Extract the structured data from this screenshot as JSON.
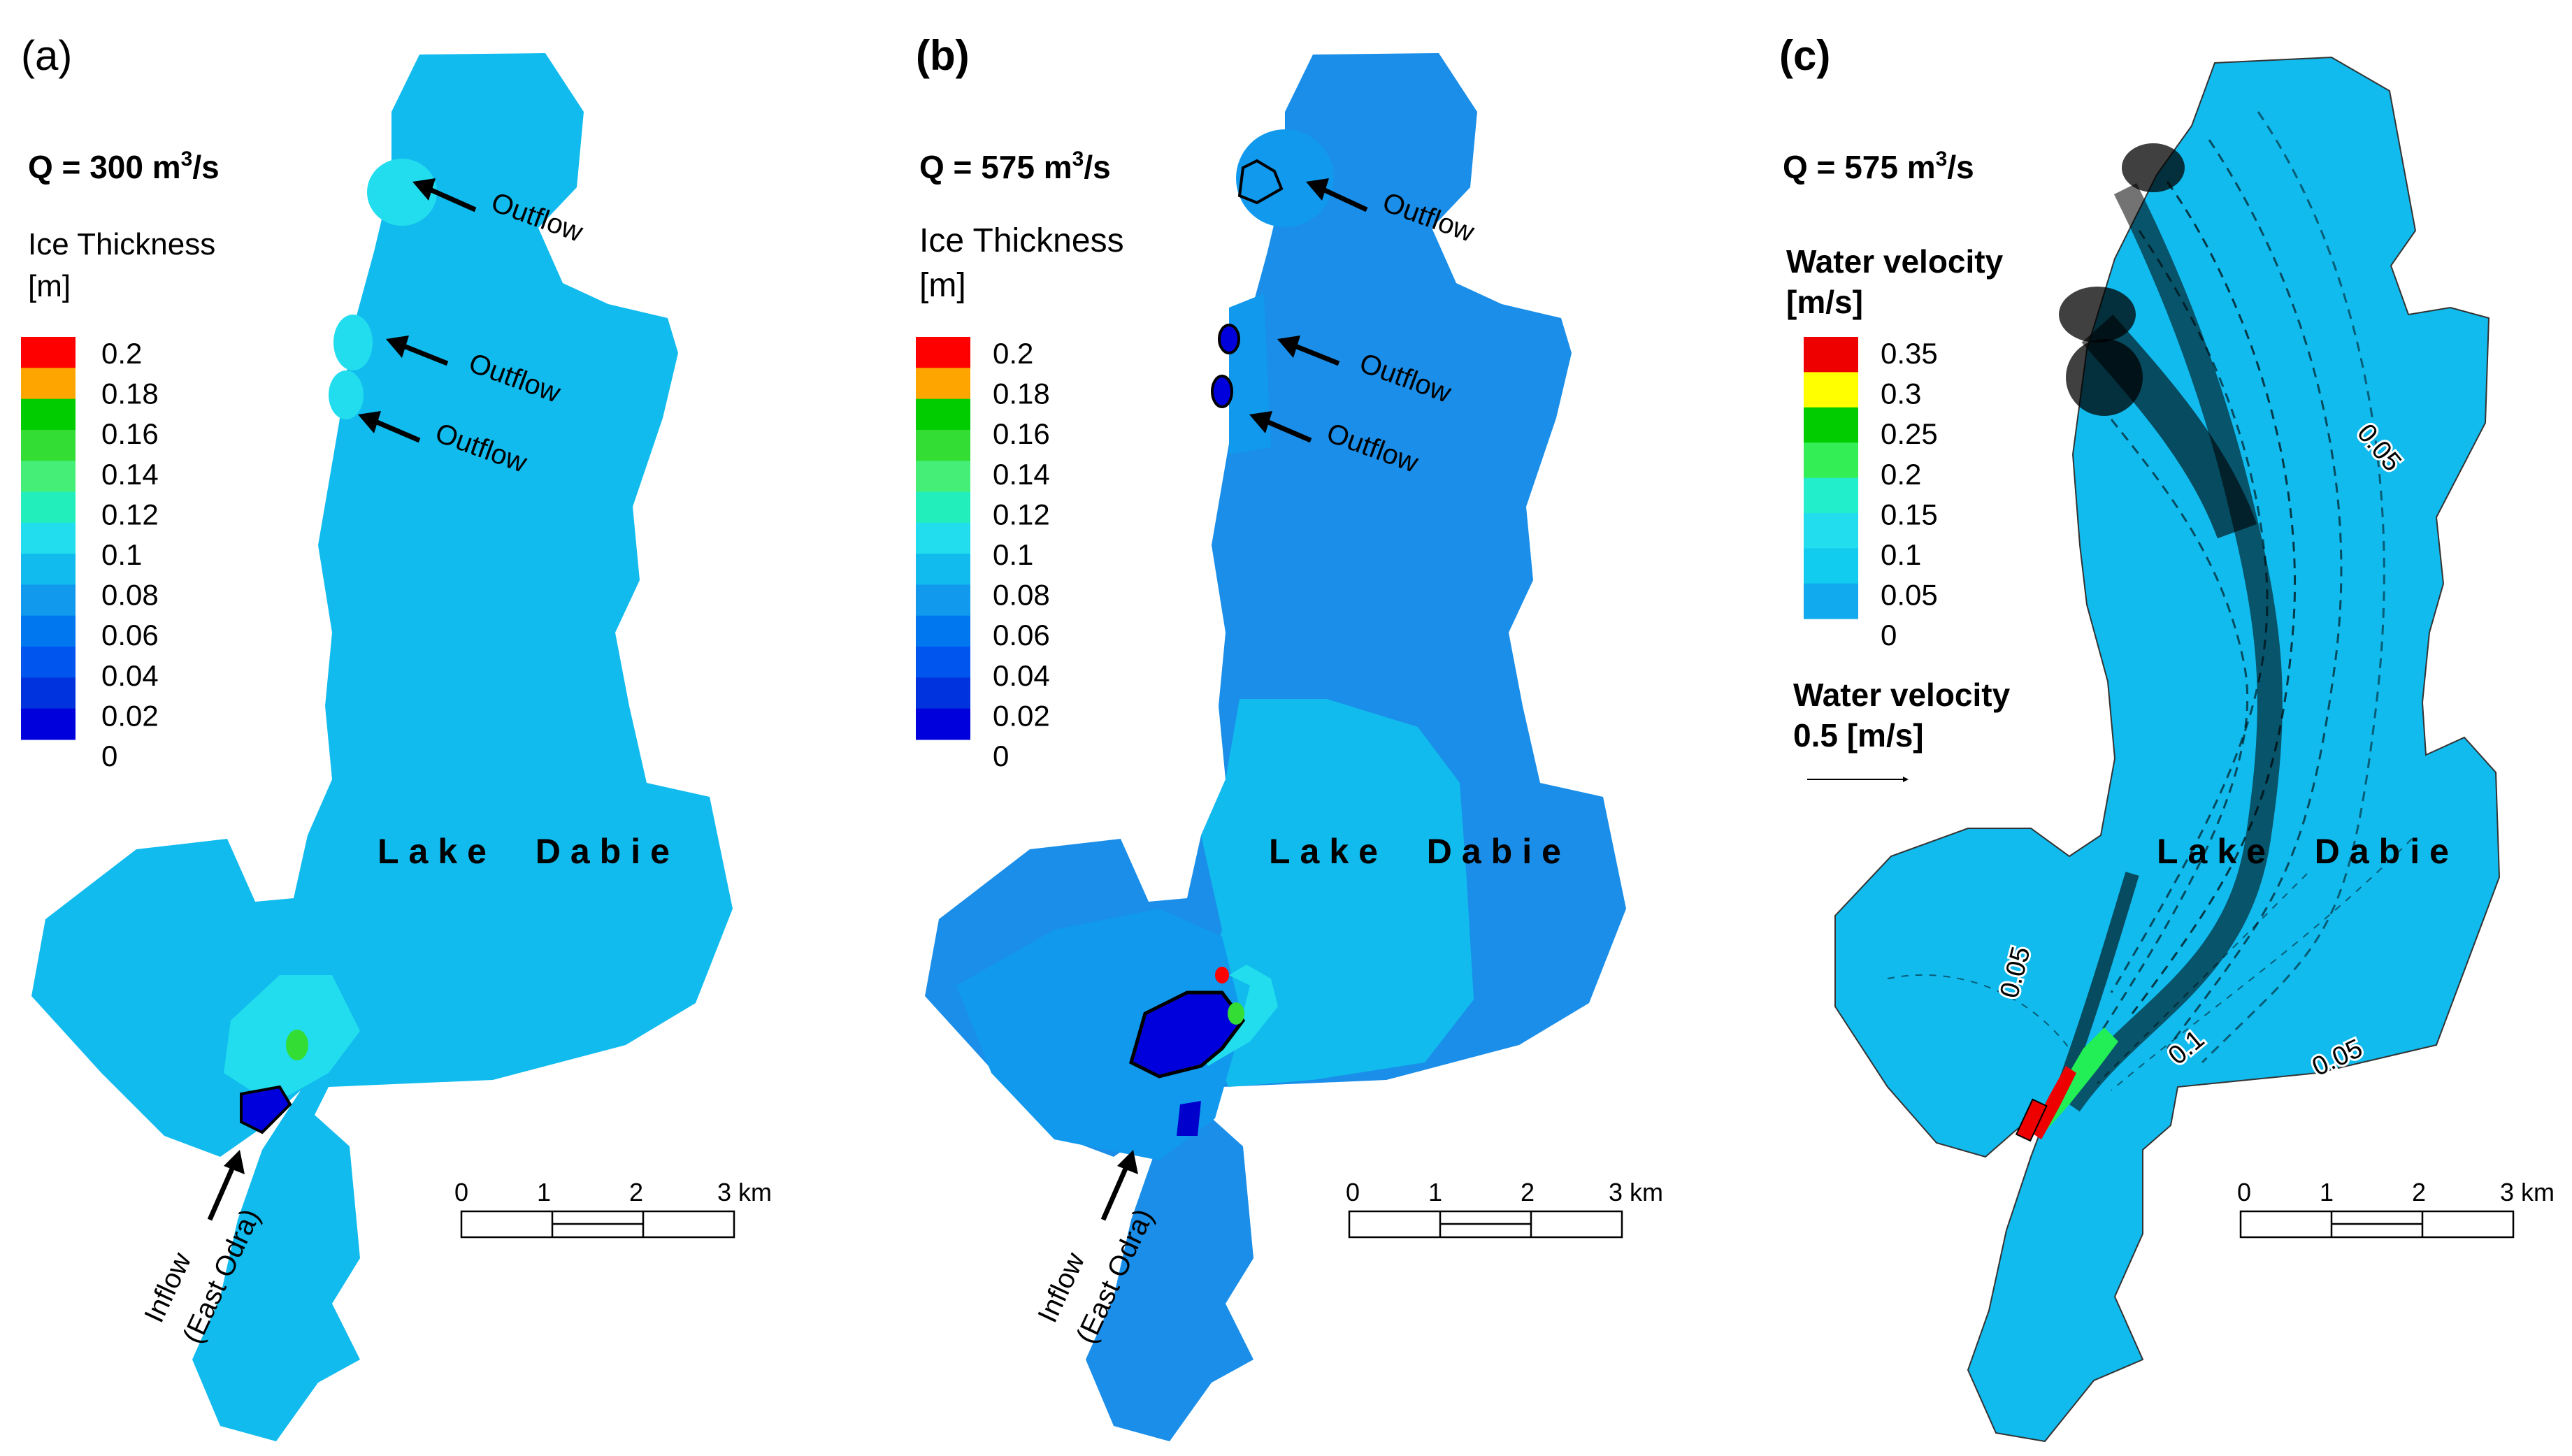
{
  "panels": [
    {
      "id": "a",
      "letter": "(a)",
      "discharge": {
        "prefix": "Q = 300 m",
        "sup": "3",
        "suffix": "/s"
      },
      "legend": {
        "title_lines": [
          "Ice Thickness",
          "[m]"
        ],
        "title_bold": false,
        "colors": [
          "#ff0000",
          "#ffa500",
          "#00cc00",
          "#33dd33",
          "#44ee77",
          "#22eebb",
          "#22ddee",
          "#11bbee",
          "#1199ee",
          "#0077ee",
          "#0055ee",
          "#0033dd",
          "#0000dd"
        ],
        "labels": [
          "0.2",
          "0.18",
          "0.16",
          "0.14",
          "0.12",
          "0.1",
          "0.08",
          "0.06",
          "0.04",
          "0.02",
          "0"
        ]
      },
      "lake_fill": "#11bbee",
      "lake_label": "Lake  Dabie",
      "arrows": [
        {
          "label": "Outflow"
        },
        {
          "label": "Outflow"
        },
        {
          "label": "Outflow"
        }
      ],
      "inflow_label": [
        "Inflow",
        "(East Odra)"
      ],
      "scale_bar": {
        "labels": [
          "0",
          "1",
          "2",
          "3 km"
        ]
      }
    },
    {
      "id": "b",
      "letter": "(b)",
      "discharge": {
        "prefix": "Q = 575 m",
        "sup": "3",
        "suffix": "/s"
      },
      "legend": {
        "title_lines": [
          "Ice Thickness",
          "[m]"
        ],
        "title_bold": false,
        "colors": [
          "#ff0000",
          "#ffa500",
          "#00cc00",
          "#33dd33",
          "#44ee77",
          "#22eebb",
          "#22ddee",
          "#11bbee",
          "#1199ee",
          "#0077ee",
          "#0055ee",
          "#0033dd",
          "#0000dd"
        ],
        "labels": [
          "0.2",
          "0.18",
          "0.16",
          "0.14",
          "0.12",
          "0.1",
          "0.08",
          "0.06",
          "0.04",
          "0.02",
          "0"
        ]
      },
      "lake_fill": "#1a8ee8",
      "lake_label": "Lake  Dabie",
      "arrows": [
        {
          "label": "Outflow"
        },
        {
          "label": "Outflow"
        },
        {
          "label": "Outflow"
        }
      ],
      "inflow_label": [
        "Inflow",
        "(East Odra)"
      ],
      "scale_bar": {
        "labels": [
          "0",
          "1",
          "2",
          "3 km"
        ]
      }
    },
    {
      "id": "c",
      "letter": "(c)",
      "discharge": {
        "prefix": "Q = 575 m",
        "sup": "3",
        "suffix": "/s"
      },
      "legend": {
        "title_lines": [
          "Water velocity",
          "[m/s]"
        ],
        "title_bold": true,
        "colors": [
          "#ee0000",
          "#ffff00",
          "#00cc00",
          "#33ee55",
          "#22eecc",
          "#22ddee",
          "#11ccee",
          "#11aaee"
        ],
        "labels": [
          "0.35",
          "0.3",
          "0.25",
          "0.2",
          "0.15",
          "0.1",
          "0.05",
          "0"
        ]
      },
      "reference_vector": {
        "title": "Water velocity",
        "value": "0.5 [m/s]"
      },
      "lake_fill": "#11bbee",
      "lake_label": "Lake  Dabie",
      "contour_labels": [
        "0.05",
        "0.05",
        "0.1",
        "0.05"
      ],
      "scale_bar": {
        "labels": [
          "0",
          "1",
          "2",
          "3 km"
        ]
      }
    }
  ]
}
